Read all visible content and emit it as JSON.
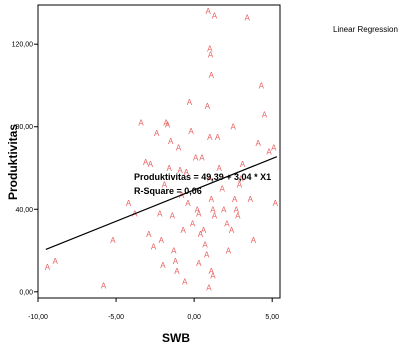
{
  "chart_data": {
    "type": "scatter",
    "title": "",
    "xlabel": "SWB",
    "ylabel": "Produktivitas",
    "xlim": [
      -10,
      5.5
    ],
    "ylim": [
      -3,
      139
    ],
    "x_ticks": [
      -10,
      -5,
      0,
      5
    ],
    "x_tick_labels": [
      "-10,00",
      "-5,00",
      "0,00",
      "5,00"
    ],
    "y_ticks": [
      0,
      40,
      80,
      120
    ],
    "y_tick_labels": [
      "0,00",
      "40,00",
      "80,00",
      "120,00"
    ],
    "grid": false,
    "legend_text": "Linear Regression",
    "legend_position": "top-right",
    "marker_symbol": "A",
    "marker_color": "#e86060",
    "line_color": "#000000",
    "regression": {
      "intercept": 49.39,
      "slope": 3.04,
      "x_range": [
        -9.5,
        5.3
      ]
    },
    "annotations": [
      "Produktivitas = 49,39 + 3,04 * X1",
      "R-Square = 0,06"
    ],
    "points": [
      [
        -9.4,
        12
      ],
      [
        -8.9,
        15
      ],
      [
        -5.2,
        25
      ],
      [
        -5.8,
        3
      ],
      [
        -4.2,
        43
      ],
      [
        -3.4,
        82
      ],
      [
        -3.8,
        38
      ],
      [
        -3.1,
        63
      ],
      [
        -2.8,
        62
      ],
      [
        -2.9,
        28
      ],
      [
        -2.6,
        22
      ],
      [
        -2.4,
        77
      ],
      [
        -2.2,
        38
      ],
      [
        -2.1,
        25
      ],
      [
        -2.0,
        13
      ],
      [
        -1.8,
        82
      ],
      [
        -1.7,
        81
      ],
      [
        -1.6,
        60
      ],
      [
        -1.5,
        73
      ],
      [
        -1.4,
        37
      ],
      [
        -1.3,
        20
      ],
      [
        -1.2,
        15
      ],
      [
        -1.1,
        10
      ],
      [
        -1.0,
        70
      ],
      [
        -0.9,
        59
      ],
      [
        -0.8,
        47
      ],
      [
        -0.7,
        30
      ],
      [
        -0.6,
        5
      ],
      [
        -0.5,
        58
      ],
      [
        -0.4,
        43
      ],
      [
        -0.3,
        92
      ],
      [
        -0.2,
        78
      ],
      [
        0.1,
        65
      ],
      [
        0.2,
        40
      ],
      [
        0.3,
        38
      ],
      [
        0.4,
        28
      ],
      [
        0.5,
        65
      ],
      [
        0.6,
        30
      ],
      [
        0.7,
        23
      ],
      [
        0.8,
        18
      ],
      [
        0.9,
        136
      ],
      [
        1.0,
        118
      ],
      [
        1.05,
        115
      ],
      [
        1.1,
        105
      ],
      [
        0.85,
        90
      ],
      [
        1.0,
        75
      ],
      [
        1.0,
        55
      ],
      [
        1.1,
        45
      ],
      [
        1.2,
        40
      ],
      [
        1.3,
        37
      ],
      [
        1.1,
        10
      ],
      [
        1.2,
        8
      ],
      [
        0.95,
        2
      ],
      [
        1.3,
        134
      ],
      [
        1.5,
        75
      ],
      [
        1.6,
        60
      ],
      [
        1.8,
        50
      ],
      [
        1.9,
        40
      ],
      [
        2.1,
        33
      ],
      [
        2.2,
        20
      ],
      [
        2.5,
        80
      ],
      [
        2.6,
        45
      ],
      [
        2.7,
        40
      ],
      [
        2.8,
        37
      ],
      [
        2.9,
        52
      ],
      [
        3.0,
        55
      ],
      [
        3.4,
        133
      ],
      [
        3.6,
        45
      ],
      [
        3.8,
        25
      ],
      [
        4.1,
        72
      ],
      [
        4.3,
        100
      ],
      [
        4.5,
        86
      ],
      [
        4.8,
        68
      ],
      [
        5.1,
        70
      ],
      [
        5.2,
        43
      ],
      [
        -1.9,
        52
      ],
      [
        -0.1,
        33
      ],
      [
        0.3,
        14
      ],
      [
        2.4,
        30
      ],
      [
        3.1,
        62
      ]
    ]
  }
}
